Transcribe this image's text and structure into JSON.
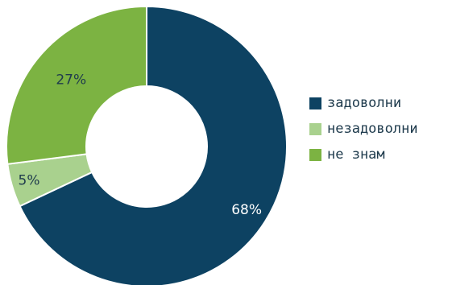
{
  "chart_data": {
    "type": "pie",
    "donut": true,
    "legend_position": "right",
    "categories": [
      "задоволни",
      "незадоволни",
      "не знам"
    ],
    "values": [
      68,
      5,
      27
    ],
    "data_labels": [
      "68%",
      "5%",
      "27%"
    ],
    "colors": [
      "#0d4262",
      "#a9d18e",
      "#7cb342"
    ],
    "label_colors": [
      "#ffffff",
      "#1f3b4d",
      "#1f3b4d"
    ]
  }
}
